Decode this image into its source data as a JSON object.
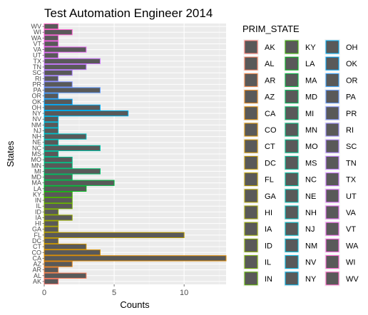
{
  "chart_data": {
    "type": "bar",
    "orientation": "horizontal",
    "title": "Test Automation Engineer 2014",
    "xlabel": "Counts",
    "ylabel": "States",
    "xlim": [
      0,
      13
    ],
    "xticks": [
      0,
      5,
      10
    ],
    "grid": true,
    "bar_fill": "#595959",
    "panel_background": "#ebebeb",
    "legend_title": "PRIM_STATE",
    "legend_position": "right",
    "categories": [
      "AK",
      "AL",
      "AR",
      "AZ",
      "CA",
      "CO",
      "CT",
      "DC",
      "FL",
      "GA",
      "HI",
      "IA",
      "ID",
      "IL",
      "IN",
      "KY",
      "LA",
      "MA",
      "MD",
      "MI",
      "MN",
      "MO",
      "MS",
      "NC",
      "NE",
      "NH",
      "NJ",
      "NM",
      "NV",
      "NY",
      "OH",
      "OK",
      "OR",
      "PA",
      "PR",
      "RI",
      "SC",
      "TN",
      "TX",
      "UT",
      "VA",
      "VT",
      "WA",
      "WI",
      "WV"
    ],
    "values": [
      1,
      3,
      1,
      2,
      13,
      4,
      3,
      1,
      10,
      1,
      1,
      2,
      1,
      2,
      2,
      2,
      3,
      5,
      2,
      4,
      2,
      2,
      1,
      4,
      1,
      3,
      1,
      1,
      1,
      6,
      4,
      2,
      1,
      4,
      2,
      1,
      2,
      3,
      4,
      1,
      3,
      1,
      1,
      2,
      1
    ],
    "colors": [
      "#f8766d",
      "#f37b59",
      "#ed8141",
      "#e7861b",
      "#e08b00",
      "#d89000",
      "#cf9400",
      "#c59900",
      "#bb9d00",
      "#b0a100",
      "#a3a500",
      "#95a900",
      "#86ac00",
      "#75af00",
      "#5eb300",
      "#39b600",
      "#00b81f",
      "#00ba42",
      "#00bc59",
      "#00be6c",
      "#00bf7d",
      "#00c08c",
      "#00c19a",
      "#00c1a7",
      "#00c0b4",
      "#00bfc0",
      "#00bdcc",
      "#00bbd7",
      "#00b8e2",
      "#00b4ec",
      "#00aff6",
      "#00a9ff",
      "#35a2ff",
      "#619cff",
      "#8094ff",
      "#9a8cff",
      "#ae84ff",
      "#c07cff",
      "#cf78ff",
      "#dc71fa",
      "#e76bf3",
      "#f066ea",
      "#f863df",
      "#fd61d2",
      "#ff62c4"
    ]
  }
}
